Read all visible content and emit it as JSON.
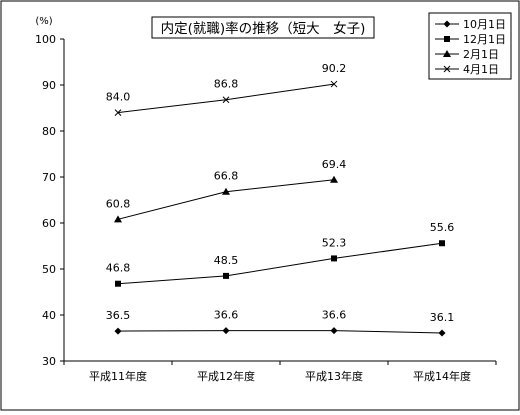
{
  "chart_data": {
    "type": "line",
    "title": "内定(就職)率の推移（短大　女子)",
    "unit_label": "(%)",
    "ylim": [
      30,
      100
    ],
    "yticks": [
      30,
      40,
      50,
      60,
      70,
      80,
      90,
      100
    ],
    "grid": false,
    "legend_position": "top-right",
    "categories": [
      "平成11年度",
      "平成12年度",
      "平成13年度",
      "平成14年度"
    ],
    "series": [
      {
        "name": "10月1日",
        "marker": "diamond",
        "values": [
          36.5,
          36.6,
          36.6,
          36.1
        ],
        "labels": [
          "36.5",
          "36.6",
          "36.6",
          "36.1"
        ]
      },
      {
        "name": "12月1日",
        "marker": "square",
        "values": [
          46.8,
          48.5,
          52.3,
          55.6
        ],
        "labels": [
          "46.8",
          "48.5",
          "52.3",
          "55.6"
        ]
      },
      {
        "name": "2月1日",
        "marker": "triangle",
        "values": [
          60.8,
          66.8,
          69.4,
          null
        ],
        "labels": [
          "60.8",
          "66.8",
          "69.4",
          ""
        ]
      },
      {
        "name": "4月1日",
        "marker": "x",
        "values": [
          84.0,
          86.8,
          90.2,
          null
        ],
        "labels": [
          "84.0",
          "86.8",
          "90.2",
          ""
        ]
      }
    ]
  }
}
